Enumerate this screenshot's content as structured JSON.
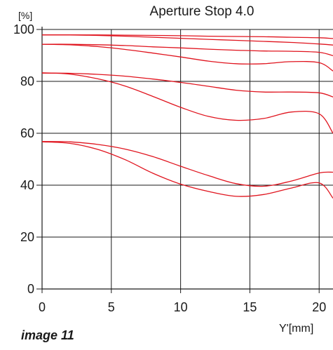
{
  "caption": "image 11",
  "chart_data": {
    "type": "line",
    "title": "Aperture Stop 4.0",
    "ylabel": "[%]",
    "xlabel": "Y'[mm]",
    "xlim": [
      0,
      21
    ],
    "ylim": [
      0,
      100
    ],
    "xticks": [
      0,
      5,
      10,
      15,
      20
    ],
    "yticks": [
      0,
      20,
      40,
      60,
      80,
      100
    ],
    "grid": true,
    "line_color": "#e0141e",
    "x": [
      0,
      2,
      4,
      6,
      8,
      10,
      12,
      14,
      16,
      18,
      20,
      21
    ],
    "series": [
      {
        "values": [
          97.9,
          97.9,
          97.9,
          97.8,
          97.7,
          97.6,
          97.4,
          97.3,
          97.2,
          97.0,
          96.8,
          96.5
        ]
      },
      {
        "values": [
          97.9,
          97.9,
          97.7,
          97.4,
          97.0,
          96.6,
          96.2,
          95.8,
          95.4,
          95.0,
          94.4,
          94.0
        ]
      },
      {
        "values": [
          94.3,
          94.3,
          94.1,
          93.8,
          93.3,
          92.9,
          92.4,
          92.0,
          91.7,
          91.6,
          91.2,
          89.9
        ]
      },
      {
        "values": [
          94.3,
          94.1,
          93.4,
          92.3,
          90.9,
          89.4,
          87.8,
          86.8,
          86.8,
          87.6,
          87.2,
          84.0
        ]
      },
      {
        "values": [
          83.2,
          83.1,
          82.7,
          82.0,
          80.9,
          79.6,
          78.1,
          76.6,
          75.9,
          75.9,
          75.6,
          74.0
        ]
      },
      {
        "values": [
          83.3,
          82.8,
          81.0,
          78.2,
          74.2,
          70.0,
          66.5,
          65.0,
          65.7,
          68.2,
          67.5,
          60.0
        ]
      },
      {
        "values": [
          56.8,
          56.7,
          55.7,
          53.9,
          51.0,
          47.3,
          43.7,
          40.6,
          39.6,
          41.6,
          44.7,
          45.0
        ]
      },
      {
        "values": [
          56.7,
          56.1,
          53.8,
          49.8,
          44.6,
          40.4,
          37.6,
          35.7,
          36.4,
          38.9,
          40.9,
          35.0
        ]
      }
    ]
  }
}
